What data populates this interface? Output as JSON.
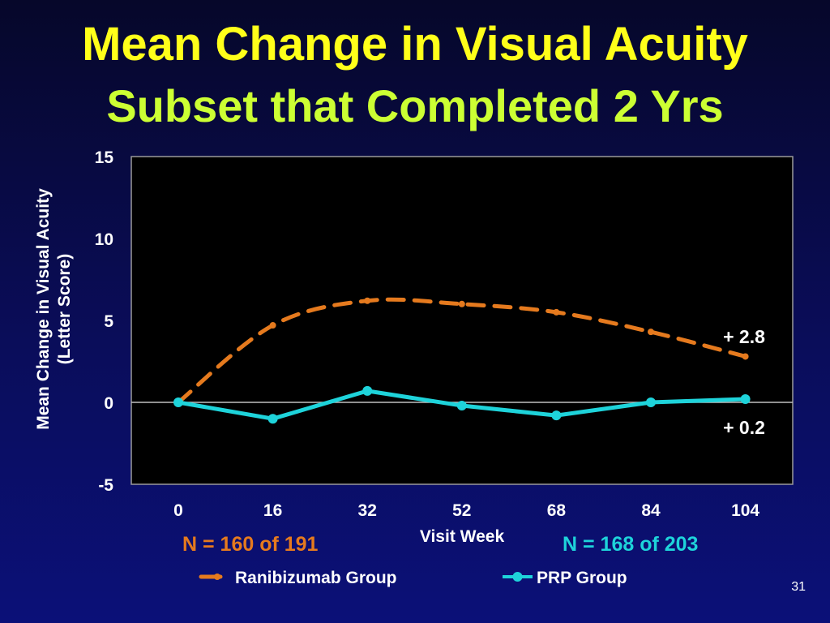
{
  "slide": {
    "title_line1": "Mean Change in Visual Acuity",
    "title_line2": "Subset that Completed 2 Yrs",
    "page_number": "31",
    "n_ranibizumab": "N = 160 of 191",
    "n_prp": "N = 168 of 203"
  },
  "chart_data": {
    "type": "line",
    "xlabel": "Visit Week",
    "ylabel_line1": "Mean Change in Visual Acuity",
    "ylabel_line2": "(Letter Score)",
    "x": [
      0,
      16,
      32,
      52,
      68,
      84,
      104
    ],
    "y_ticks": [
      "15",
      "10",
      "5",
      "0",
      "-5"
    ],
    "ylim": [
      -5,
      15
    ],
    "grid": false,
    "legend_position": "bottom",
    "series": [
      {
        "name": "Ranibizumab Group",
        "color": "#e57a1e",
        "style": "dashed",
        "values": [
          0,
          4.7,
          6.2,
          6.0,
          5.5,
          4.3,
          2.8
        ],
        "end_label": "+ 2.8"
      },
      {
        "name": "PRP Group",
        "color": "#1ed3da",
        "style": "solid",
        "values": [
          0,
          -1.0,
          0.7,
          -0.2,
          -0.8,
          0.0,
          0.2
        ],
        "end_label": "+ 0.2"
      }
    ]
  }
}
